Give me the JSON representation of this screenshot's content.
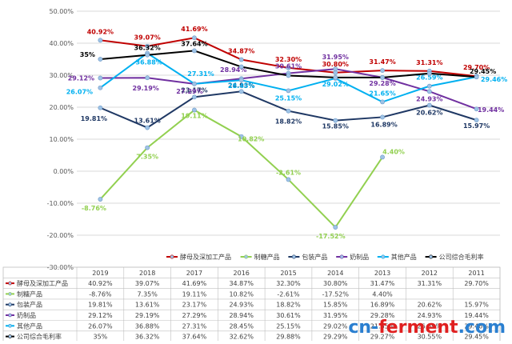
{
  "chart_data": {
    "type": "line",
    "categories": [
      "2019",
      "2018",
      "2017",
      "2016",
      "2015",
      "2014",
      "2013",
      "2012",
      "2011"
    ],
    "y_ticks": [
      "50.00%",
      "40.00%",
      "30.00%",
      "20.00%",
      "10.00%",
      "0.00%",
      "-10.00%",
      "-20.00%",
      "-30.00%"
    ],
    "ylim": [
      -30,
      50
    ],
    "grid": true,
    "legend_position": "bottom",
    "series": [
      {
        "name": "酵母及深加工产品",
        "color": "#c00000",
        "values": [
          40.92,
          39.07,
          41.69,
          34.87,
          32.3,
          30.8,
          31.47,
          31.31,
          29.7
        ],
        "labels": [
          "40.92%",
          "39.07%",
          "41.69%",
          "34.87%",
          "32.30%",
          "30.80%",
          "31.47%",
          "31.31%",
          "29.70%"
        ],
        "table_cells": [
          "40.92%",
          "39.07%",
          "41.69%",
          "34.87%",
          "32.30%",
          "30.80%",
          "31.47%",
          "31.31%",
          "29.70%"
        ]
      },
      {
        "name": "制糖产品",
        "color": "#92d050",
        "values": [
          -8.76,
          7.35,
          19.11,
          10.82,
          -2.61,
          -17.52,
          4.4,
          null,
          null
        ],
        "labels": [
          "-8.76%",
          "7.35%",
          "19.11%",
          "10.82%",
          "-2.61%",
          "-17.52%",
          "4.40%",
          "",
          ""
        ],
        "table_cells": [
          "-8.76%",
          "7.35%",
          "19.11%",
          "10.82%",
          "-2.61%",
          "-17.52%",
          "4.40%",
          "",
          ""
        ]
      },
      {
        "name": "包装产品",
        "color": "#1f3864",
        "values": [
          19.81,
          13.61,
          23.17,
          24.93,
          18.82,
          15.85,
          16.89,
          20.62,
          15.97
        ],
        "labels": [
          "19.81%",
          "13.61%",
          "23.17%",
          "24.93%",
          "18.82%",
          "15.85%",
          "16.89%",
          "20.62%",
          "15.97%"
        ],
        "table_cells": [
          "19.81%",
          "13.61%",
          "23.17%",
          "24.93%",
          "18.82%",
          "15.85%",
          "16.89%",
          "20.62%",
          "15.97%"
        ]
      },
      {
        "name": "奶制品",
        "color": "#7030a0",
        "values": [
          29.12,
          29.19,
          27.29,
          28.94,
          30.61,
          31.95,
          29.28,
          24.93,
          19.44
        ],
        "labels": [
          "29.12%",
          "29.19%",
          "27.29%",
          "28.94%",
          "30.61%",
          "31.95%",
          "29.28%",
          "24.93%",
          "19.44%"
        ],
        "table_cells": [
          "29.12%",
          "29.19%",
          "27.29%",
          "28.94%",
          "30.61%",
          "31.95%",
          "29.28%",
          "24.93%",
          "19.44%"
        ]
      },
      {
        "name": "其他产品",
        "color": "#00b0f0",
        "values": [
          26.07,
          36.88,
          27.31,
          28.45,
          25.15,
          29.02,
          21.65,
          26.59,
          29.46
        ],
        "labels": [
          "26.07%",
          "36.88%",
          "27.31%",
          "28.45%",
          "25.15%",
          "29.02%",
          "21.65%",
          "26.59%",
          "29.46%"
        ],
        "table_cells": [
          "26.07%",
          "36.88%",
          "27.31%",
          "28.45%",
          "25.15%",
          "29.02%",
          "21.65%",
          "26.59%",
          "29.46%"
        ]
      },
      {
        "name": "公司综合毛利率",
        "color": "#000000",
        "values": [
          35,
          36.32,
          37.64,
          32.62,
          29.88,
          29.29,
          29.27,
          30.55,
          29.45
        ],
        "labels": [
          "35%",
          "36.32%",
          "37.64%",
          "",
          "",
          "",
          "",
          "",
          "29.45%"
        ],
        "table_cells": [
          "35%",
          "36.32%",
          "37.64%",
          "32.62%",
          "29.88%",
          "29.29%",
          "29.27%",
          "30.55%",
          "29.45%"
        ]
      }
    ]
  },
  "watermark": {
    "part_a": "cn-",
    "part_b": "ferment",
    "part_c": ".com"
  }
}
